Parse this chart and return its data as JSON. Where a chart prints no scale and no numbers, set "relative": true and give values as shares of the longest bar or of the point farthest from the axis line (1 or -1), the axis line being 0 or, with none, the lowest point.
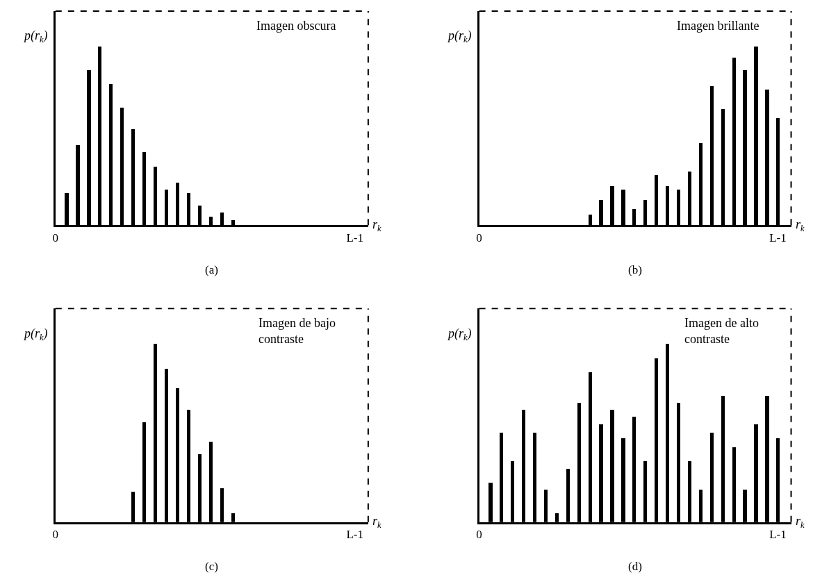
{
  "chart_data": [
    {
      "type": "bar",
      "title": "Imagen obscura",
      "xlabel": "r$_{k}$",
      "ylabel": "p(r$_{k}$)",
      "relative": true,
      "color": "#000000",
      "annotations": [
        "(a)"
      ],
      "categories": [
        "0",
        null,
        null,
        null,
        null,
        null,
        null,
        null,
        null,
        null,
        null,
        null,
        null,
        null,
        null,
        null,
        null,
        null,
        null,
        null,
        null,
        null,
        null,
        null,
        null,
        null,
        null,
        "L-1"
      ],
      "values": [
        0,
        0.18,
        0.45,
        0.87,
        1,
        0.79,
        0.66,
        0.54,
        0.41,
        0.33,
        0.2,
        0.24,
        0.18,
        0.11,
        0.05,
        0.07,
        0.03,
        0,
        0,
        0,
        0,
        0,
        0,
        0,
        0,
        0,
        0,
        0
      ]
    },
    {
      "type": "bar",
      "title": "Imagen brillante",
      "xlabel": "r$_{k}$",
      "ylabel": "p(r$_{k}$)",
      "relative": true,
      "color": "#000000",
      "annotations": [
        "(b)"
      ],
      "categories": [
        "0",
        null,
        null,
        null,
        null,
        null,
        null,
        null,
        null,
        null,
        null,
        null,
        null,
        null,
        null,
        null,
        null,
        null,
        null,
        null,
        null,
        null,
        null,
        null,
        null,
        null,
        null,
        "L-1"
      ],
      "values": [
        0,
        0,
        0,
        0,
        0,
        0,
        0,
        0,
        0,
        0,
        0.06,
        0.14,
        0.22,
        0.2,
        0.09,
        0.14,
        0.28,
        0.22,
        0.2,
        0.3,
        0.46,
        0.78,
        0.65,
        0.94,
        0.87,
        1,
        0.76,
        0.6
      ]
    },
    {
      "type": "bar",
      "title": "Imagen de bajo contraste",
      "xlabel": "r$_{k}$",
      "ylabel": "p(r$_{k}$)",
      "relative": true,
      "color": "#000000",
      "annotations": [
        "(c)"
      ],
      "categories": [
        "0",
        null,
        null,
        null,
        null,
        null,
        null,
        null,
        null,
        null,
        null,
        null,
        null,
        null,
        null,
        null,
        null,
        null,
        null,
        null,
        null,
        null,
        null,
        null,
        null,
        null,
        null,
        "L-1"
      ],
      "values": [
        0,
        0,
        0,
        0,
        0,
        0,
        0,
        0.17,
        0.56,
        1,
        0.86,
        0.75,
        0.63,
        0.38,
        0.45,
        0.19,
        0.05,
        0,
        0,
        0,
        0,
        0,
        0,
        0,
        0,
        0,
        0,
        0
      ]
    },
    {
      "type": "bar",
      "title": "Imagen de alto contraste",
      "xlabel": "r$_{k}$",
      "ylabel": "p(r$_{k}$)",
      "relative": true,
      "color": "#000000",
      "annotations": [
        "(d)"
      ],
      "categories": [
        "0",
        null,
        null,
        null,
        null,
        null,
        null,
        null,
        null,
        null,
        null,
        null,
        null,
        null,
        null,
        null,
        null,
        null,
        null,
        null,
        null,
        null,
        null,
        null,
        null,
        null,
        null,
        "L-1"
      ],
      "values": [
        0,
        0.22,
        0.5,
        0.34,
        0.63,
        0.5,
        0.18,
        0.05,
        0.3,
        0.67,
        0.84,
        0.55,
        0.63,
        0.47,
        0.59,
        0.34,
        0.92,
        1,
        0.67,
        0.34,
        0.18,
        0.5,
        0.71,
        0.42,
        0.18,
        0.55,
        0.71,
        0.47
      ]
    }
  ]
}
